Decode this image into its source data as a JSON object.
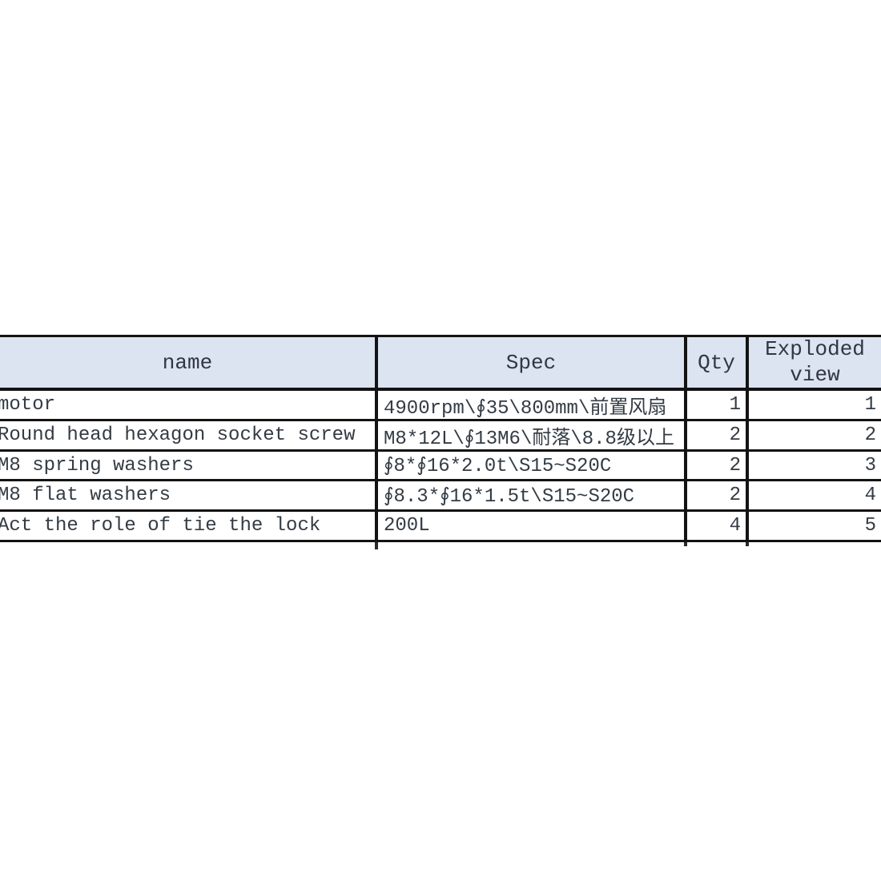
{
  "page": {
    "background_color": "#ffffff",
    "description": "parts list specification table"
  },
  "table": {
    "colors": {
      "header_background": "#dce3f1",
      "border": "#131313",
      "text": "#333b44"
    },
    "columns": [
      {
        "key": "name",
        "label": "name"
      },
      {
        "key": "spec",
        "label": "Spec"
      },
      {
        "key": "qty",
        "label": "Qty"
      },
      {
        "key": "exploded",
        "label": "Exploded view"
      }
    ],
    "rows": [
      {
        "name": "motor",
        "spec": "4900rpm\\∮35\\800mm\\前置风扇",
        "qty": "1",
        "exploded": "1"
      },
      {
        "name": "Round head hexagon socket screw",
        "spec": "M8*12L\\∮13M6\\耐落\\8.8级以上",
        "qty": "2",
        "exploded": "2"
      },
      {
        "name": "M8 spring washers",
        "spec": "∮8*∮16*2.0t\\S15~S20C",
        "qty": "2",
        "exploded": "3"
      },
      {
        "name": "M8 flat washers",
        "spec": "∮8.3*∮16*1.5t\\S15~S20C",
        "qty": "2",
        "exploded": "4"
      },
      {
        "name": "Act the role of tie the lock",
        "spec": "200L",
        "qty": "4",
        "exploded": "5"
      }
    ]
  }
}
